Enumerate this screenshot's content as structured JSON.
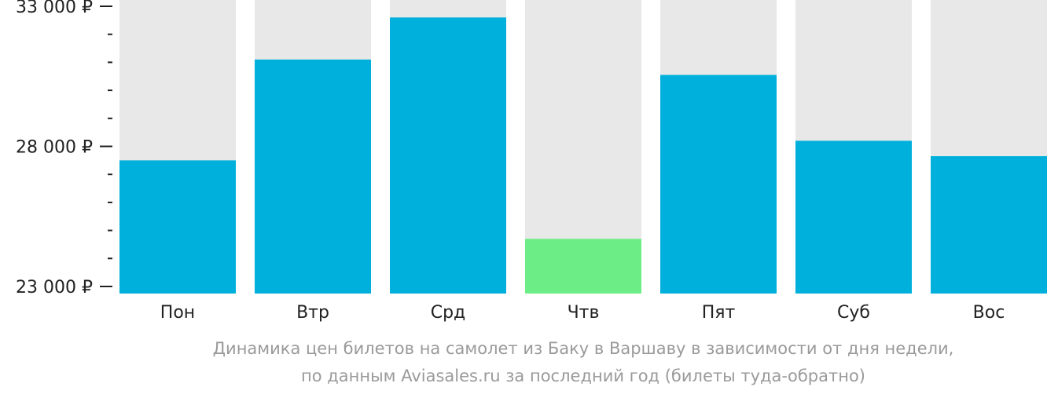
{
  "chart_data": {
    "type": "bar",
    "categories": [
      "Пон",
      "Втр",
      "Срд",
      "Чтв",
      "Пят",
      "Суб",
      "Вос"
    ],
    "values": [
      27500,
      31100,
      32600,
      24700,
      30550,
      28200,
      27650
    ],
    "ylim": [
      23000,
      33000
    ],
    "yticks": [
      {
        "value": 33000,
        "label": "33 000 ₽"
      },
      {
        "value": 28000,
        "label": "28 000 ₽"
      },
      {
        "value": 23000,
        "label": "23 000 ₽"
      }
    ],
    "minor_tick_step": 1000,
    "colors": {
      "bar": "#00b0dc",
      "cheapest_bar": "#6ded85",
      "track": "#e8e8e8",
      "axis": "#222222"
    },
    "highlight_index": 3
  },
  "caption": {
    "line1": "Динамика цен билетов на самолет из Баку в Варшаву в зависимости от дня недели,",
    "line2": "по данным Aviasales.ru за последний год (билеты туда-обратно)"
  }
}
